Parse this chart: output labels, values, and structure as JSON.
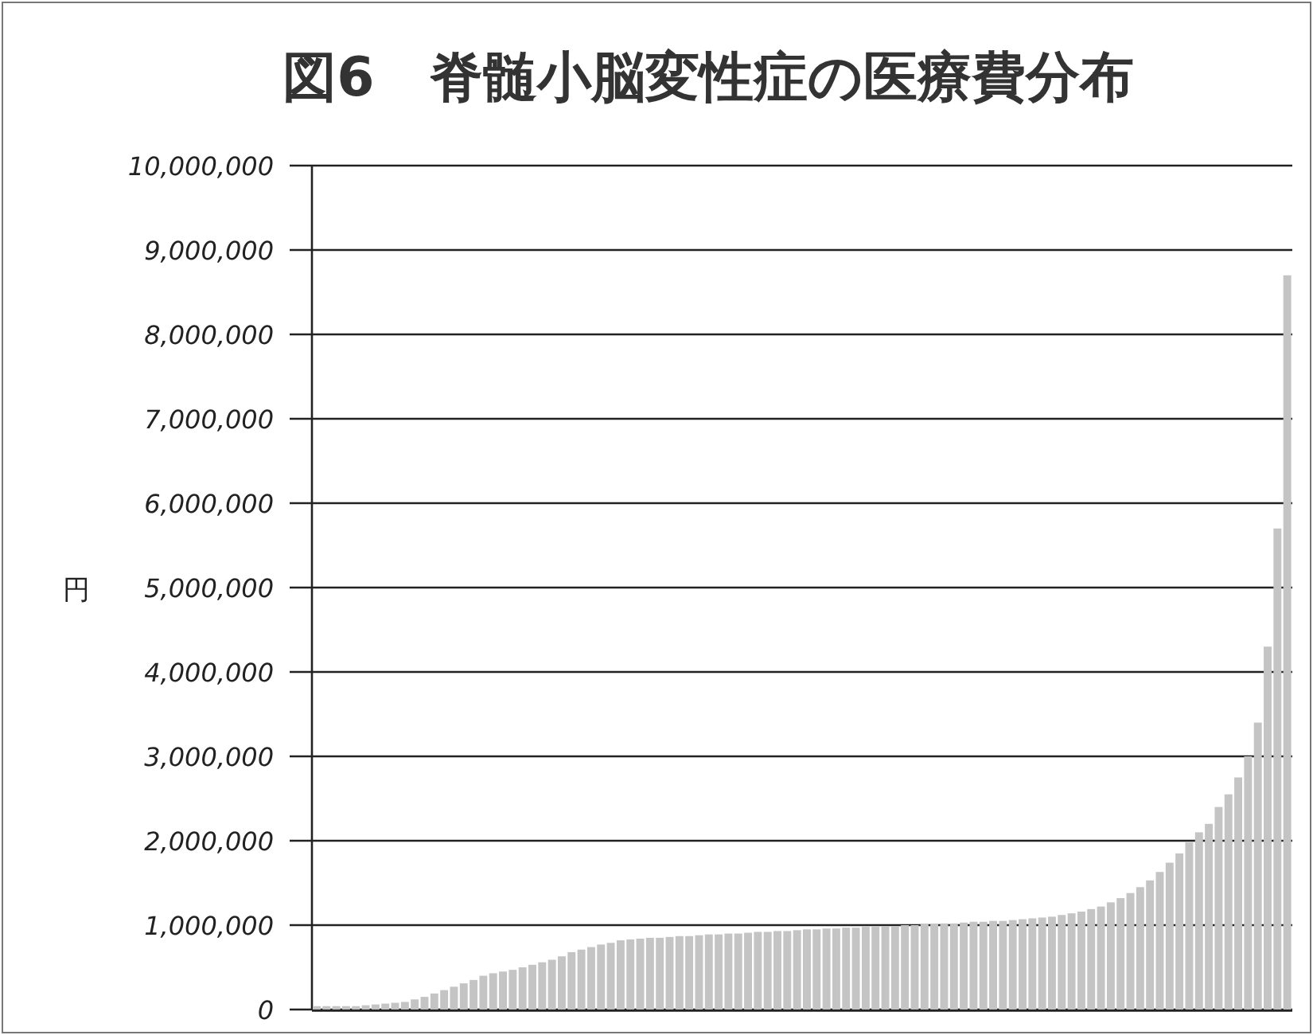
{
  "chart_data": {
    "type": "bar",
    "title": "図6　脊髄小脳変性症の医療費分布",
    "ylabel": "円",
    "categories": [
      null,
      null,
      null,
      null,
      null,
      null,
      null,
      null,
      null,
      null,
      null,
      null,
      null,
      null,
      null,
      null,
      null,
      null,
      null,
      null,
      null,
      null,
      null,
      null,
      null,
      null,
      null,
      null,
      null,
      null,
      null,
      null,
      null,
      null,
      null,
      null,
      null,
      null,
      null,
      null,
      null,
      null,
      null,
      null,
      null,
      null,
      null,
      null,
      null,
      null,
      null,
      null,
      null,
      null,
      null,
      null,
      null,
      null,
      null,
      null,
      null,
      null,
      null,
      null,
      null,
      null,
      null,
      null,
      null,
      null,
      null,
      null,
      null,
      null,
      null,
      null,
      null,
      null,
      null,
      null,
      null,
      null,
      null,
      null,
      null,
      null,
      null,
      null,
      null,
      null,
      null,
      null,
      null,
      null,
      null,
      null,
      null,
      null,
      null,
      null
    ],
    "values": [
      40000,
      40000,
      40000,
      40000,
      40000,
      50000,
      60000,
      70000,
      80000,
      90000,
      120000,
      150000,
      190000,
      230000,
      270000,
      310000,
      350000,
      400000,
      430000,
      450000,
      470000,
      500000,
      530000,
      560000,
      590000,
      630000,
      680000,
      710000,
      740000,
      770000,
      790000,
      820000,
      830000,
      840000,
      850000,
      850000,
      860000,
      870000,
      870000,
      880000,
      890000,
      890000,
      900000,
      900000,
      910000,
      920000,
      920000,
      930000,
      930000,
      940000,
      950000,
      950000,
      960000,
      960000,
      970000,
      970000,
      980000,
      980000,
      990000,
      990000,
      1000000,
      1000000,
      1010000,
      1010000,
      1020000,
      1020000,
      1030000,
      1040000,
      1040000,
      1050000,
      1050000,
      1060000,
      1070000,
      1080000,
      1090000,
      1100000,
      1120000,
      1140000,
      1160000,
      1190000,
      1220000,
      1270000,
      1320000,
      1380000,
      1450000,
      1530000,
      1630000,
      1740000,
      1850000,
      1980000,
      2100000,
      2200000,
      2400000,
      2550000,
      2750000,
      3000000,
      3400000,
      4300000,
      5700000,
      8700000
    ],
    "color": "#c4c4c4",
    "ylim": [
      0,
      10000000
    ],
    "yticks": [
      0,
      {
        "value": 1000000,
        "label": "1,000,000"
      },
      {
        "value": 2000000,
        "label": "2,000,000"
      },
      {
        "value": 3000000,
        "label": "3,000,000"
      },
      {
        "value": 4000000,
        "label": "4,000,000"
      },
      {
        "value": 5000000,
        "label": "5,000,000"
      },
      {
        "value": 6000000,
        "label": "6,000,000"
      },
      {
        "value": 7000000,
        "label": "7,000,000"
      },
      {
        "value": 8000000,
        "label": "8,000,000"
      },
      {
        "value": 9000000,
        "label": "9,000,000"
      },
      {
        "value": 10000000,
        "label": "10,000,000"
      }
    ],
    "grid": "y"
  }
}
